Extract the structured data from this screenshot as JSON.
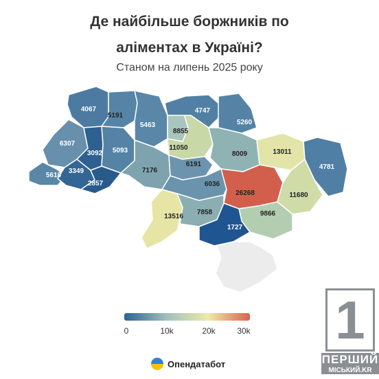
{
  "header": {
    "title_line1": "Де найбільше боржників по",
    "title_line2": "аліментах в Україні?",
    "subtitle": "Станом на липень 2025 року"
  },
  "regions": [
    {
      "id": "volyn",
      "value": "4067",
      "fill": "#4d7aa0",
      "text": "#ffffff"
    },
    {
      "id": "rivne",
      "value": "5191",
      "fill": "#5684a6",
      "text": "#222222"
    },
    {
      "id": "zhytomyr",
      "value": "5463",
      "fill": "#5a87a8",
      "text": "#ffffff"
    },
    {
      "id": "kyiv-city",
      "value": "8855",
      "fill": "#a8c6be",
      "text": "#222222"
    },
    {
      "id": "kyiv",
      "value": "11050",
      "fill": "#c8d8a7",
      "text": "#222222"
    },
    {
      "id": "chernihiv",
      "value": "4747",
      "fill": "#5180a4",
      "text": "#ffffff"
    },
    {
      "id": "sumy",
      "value": "5260",
      "fill": "#5583a6",
      "text": "#ffffff"
    },
    {
      "id": "poltava",
      "value": "8009",
      "fill": "#8fb2b3",
      "text": "#222222"
    },
    {
      "id": "kharkiv",
      "value": "13011",
      "fill": "#e2e4a8",
      "text": "#222222"
    },
    {
      "id": "luhansk",
      "value": "4781",
      "fill": "#4f7fa4",
      "text": "#ffffff"
    },
    {
      "id": "lviv",
      "value": "6307",
      "fill": "#6890ad",
      "text": "#ffffff"
    },
    {
      "id": "ternopil",
      "value": "3092",
      "fill": "#2e6090",
      "text": "#ffffff"
    },
    {
      "id": "khmelnytskyi",
      "value": "5093",
      "fill": "#5583a6",
      "text": "#ffffff"
    },
    {
      "id": "vinnytsia",
      "value": "7176",
      "fill": "#7ea3ae",
      "text": "#222222"
    },
    {
      "id": "cherkasy",
      "value": "6191",
      "fill": "#6c94ae",
      "text": "#222222"
    },
    {
      "id": "kirovohrad",
      "value": "6036",
      "fill": "#6a93ad",
      "text": "#222222"
    },
    {
      "id": "dnipro",
      "value": "26268",
      "fill": "#d25f4c",
      "text": "#222222"
    },
    {
      "id": "donetsk",
      "value": "11680",
      "fill": "#cfdca8",
      "text": "#222222"
    },
    {
      "id": "zakarpattia",
      "value": "5618",
      "fill": "#5a87a8",
      "text": "#ffffff"
    },
    {
      "id": "ivano-frankivsk",
      "value": "3349",
      "fill": "#336695",
      "text": "#ffffff"
    },
    {
      "id": "chernivtsi",
      "value": "2857",
      "fill": "#285b8c",
      "text": "#ffffff"
    },
    {
      "id": "odesa",
      "value": "13516",
      "fill": "#e6e5a6",
      "text": "#222222"
    },
    {
      "id": "mykolaiv",
      "value": "7858",
      "fill": "#8aaeb2",
      "text": "#222222"
    },
    {
      "id": "zaporizhzhia",
      "value": "9866",
      "fill": "#b3cdb0",
      "text": "#222222"
    },
    {
      "id": "kherson",
      "value": "1727",
      "fill": "#1f5590",
      "text": "#ffffff"
    },
    {
      "id": "crimea",
      "value": "",
      "fill": "#ececec",
      "text": "#222222"
    }
  ],
  "legend": {
    "colors": [
      "#2b6391",
      "#9fbfbd",
      "#eeeaa8",
      "#d9634c"
    ],
    "ticks": [
      "0",
      "10k",
      "20k",
      "30k"
    ]
  },
  "brand": {
    "name": "Опендатабот"
  },
  "watermark": {
    "number": "1",
    "line1": "ПЕРШИЙ",
    "line2": "МІСЬКИЙ.KR"
  }
}
